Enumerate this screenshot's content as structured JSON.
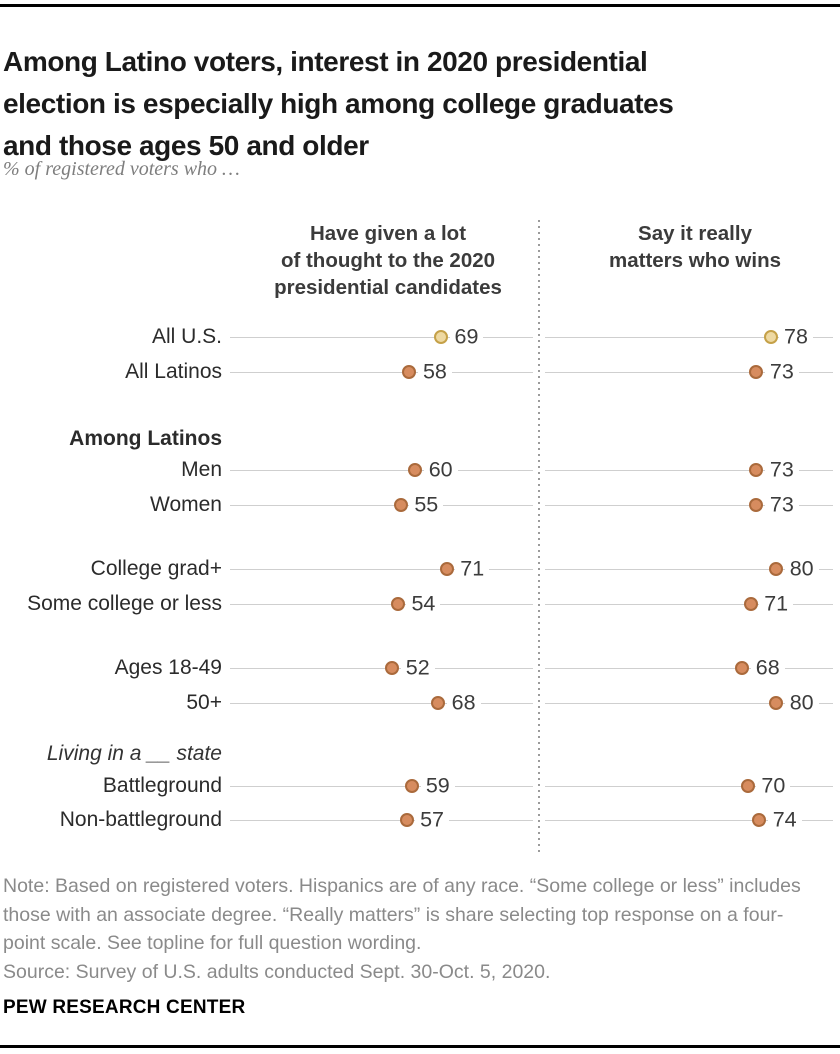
{
  "header": {
    "title": "Among Latino voters, interest in 2020 presidential\nelection is especially high among college graduates\nand those ages 50 and older",
    "subtitle": "% of registered voters who …"
  },
  "chart_data": {
    "type": "scatter",
    "subtype": "dot-plot",
    "axis_range": [
      0,
      100
    ],
    "grid": "per-row horizontal lines",
    "legend_position": "none",
    "columns": [
      {
        "label": "Have given a lot\nof thought to the 2020\npresidential candidates"
      },
      {
        "label": "Say it really\nmatters who wins"
      }
    ],
    "rows": [
      {
        "kind": "data",
        "label": "All U.S.",
        "values": [
          69,
          78
        ],
        "color": "yellow"
      },
      {
        "kind": "data",
        "label": "All Latinos",
        "values": [
          58,
          73
        ],
        "color": "orange"
      },
      {
        "kind": "header",
        "label": "Among Latinos",
        "style": "bold"
      },
      {
        "kind": "data",
        "label": "Men",
        "values": [
          60,
          73
        ],
        "color": "orange"
      },
      {
        "kind": "data",
        "label": "Women",
        "values": [
          55,
          73
        ],
        "color": "orange"
      },
      {
        "kind": "gap"
      },
      {
        "kind": "data",
        "label": "College grad+",
        "values": [
          71,
          80
        ],
        "color": "orange"
      },
      {
        "kind": "data",
        "label": "Some college or less",
        "values": [
          54,
          71
        ],
        "color": "orange"
      },
      {
        "kind": "gap"
      },
      {
        "kind": "data",
        "label": "Ages 18-49",
        "values": [
          52,
          68
        ],
        "color": "orange"
      },
      {
        "kind": "data",
        "label": "50+",
        "values": [
          68,
          80
        ],
        "color": "orange"
      },
      {
        "kind": "header",
        "label": "Living in a __ state",
        "style": "italic"
      },
      {
        "kind": "data",
        "label": "Battleground",
        "values": [
          59,
          70
        ],
        "color": "orange"
      },
      {
        "kind": "data",
        "label": "Non-battleground",
        "values": [
          57,
          74
        ],
        "color": "orange"
      }
    ],
    "colors": {
      "yellow_fill": "#eed9a2",
      "yellow_stroke": "#c5a148",
      "orange_fill": "#d78c5f",
      "orange_stroke": "#aa6a3c",
      "gridline": "#cfcfcf",
      "divider": "#9b9b9b"
    }
  },
  "footer": {
    "note": "Note: Based on registered voters. Hispanics are of any race. “Some college or less” includes\nthose with an associate degree. “Really matters” is share selecting top response on a four-\npoint scale. See topline for full question wording.",
    "source": "Source: Survey of U.S. adults conducted Sept. 30-Oct. 5, 2020.",
    "brand": "PEW RESEARCH CENTER"
  }
}
